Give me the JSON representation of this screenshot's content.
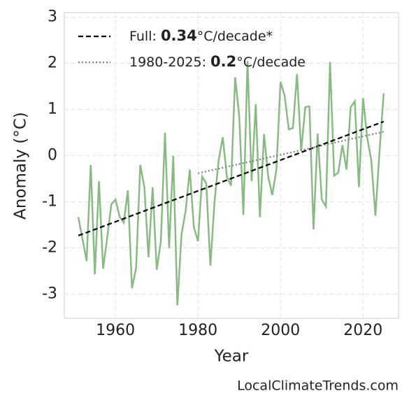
{
  "chart_data": {
    "type": "line",
    "xlabel": "Year",
    "ylabel": "Anomaly (°C)",
    "source": "LocalClimateTrends.com",
    "xlim": [
      1947.6,
      2028.6
    ],
    "ylim": [
      -3.52,
      3.1
    ],
    "xticks": [
      1960,
      1980,
      2000,
      2020
    ],
    "yticks": [
      -3,
      -2,
      -1,
      0,
      1,
      2,
      3
    ],
    "grid": true,
    "legend": "upper left",
    "x": [
      1951,
      1952,
      1953,
      1954,
      1955,
      1956,
      1957,
      1958,
      1959,
      1960,
      1961,
      1962,
      1963,
      1964,
      1965,
      1966,
      1967,
      1968,
      1969,
      1970,
      1971,
      1972,
      1973,
      1974,
      1975,
      1976,
      1977,
      1978,
      1979,
      1980,
      1981,
      1982,
      1983,
      1984,
      1985,
      1986,
      1987,
      1988,
      1989,
      1990,
      1991,
      1992,
      1993,
      1994,
      1995,
      1996,
      1997,
      1998,
      1999,
      2000,
      2001,
      2002,
      2003,
      2004,
      2005,
      2006,
      2007,
      2008,
      2009,
      2010,
      2011,
      2012,
      2013,
      2014,
      2015,
      2016,
      2017,
      2018,
      2019,
      2020,
      2021,
      2022,
      2023,
      2024,
      2025
    ],
    "series": [
      {
        "color": "#8aba84",
        "values": [
          -1.33,
          -1.8,
          -2.28,
          -0.2,
          -2.57,
          -0.55,
          -2.45,
          -1.77,
          -1.05,
          -0.95,
          -1.32,
          -1.45,
          -0.75,
          -2.87,
          -2.43,
          -0.2,
          -0.68,
          -2.2,
          -0.68,
          -2.47,
          -1.85,
          0.5,
          -2.0,
          0.0,
          -3.24,
          -1.7,
          -1.2,
          -0.3,
          -1.55,
          -1.85,
          -0.45,
          -0.6,
          -2.38,
          -1.0,
          -0.1,
          0.4,
          -0.45,
          -0.65,
          1.7,
          0.85,
          -1.28,
          2.05,
          -0.55,
          1.12,
          -1.33,
          0.47,
          -0.45,
          -0.85,
          -0.3,
          1.6,
          1.3,
          0.57,
          0.6,
          1.77,
          0.1,
          1.05,
          1.07,
          -1.6,
          0.48,
          -0.95,
          -1.1,
          2.03,
          -0.43,
          -0.37,
          0.23,
          -0.3,
          1.05,
          1.18,
          -0.68,
          1.25,
          0.4,
          -0.1,
          -1.3,
          0.1,
          1.35
        ]
      }
    ],
    "trends": [
      {
        "label": [
          "Full: ",
          "0.34",
          "°C/decade*"
        ],
        "color": "#000000",
        "dash": "7 4",
        "x": [
          1951,
          2025
        ],
        "values": [
          -1.73,
          0.74
        ]
      },
      {
        "label": [
          "1980-2025: ",
          "0.2",
          "°C/decade"
        ],
        "color": "#808080",
        "dash": "2 3",
        "x": [
          1980,
          2025
        ],
        "values": [
          -0.38,
          0.52
        ]
      }
    ]
  }
}
